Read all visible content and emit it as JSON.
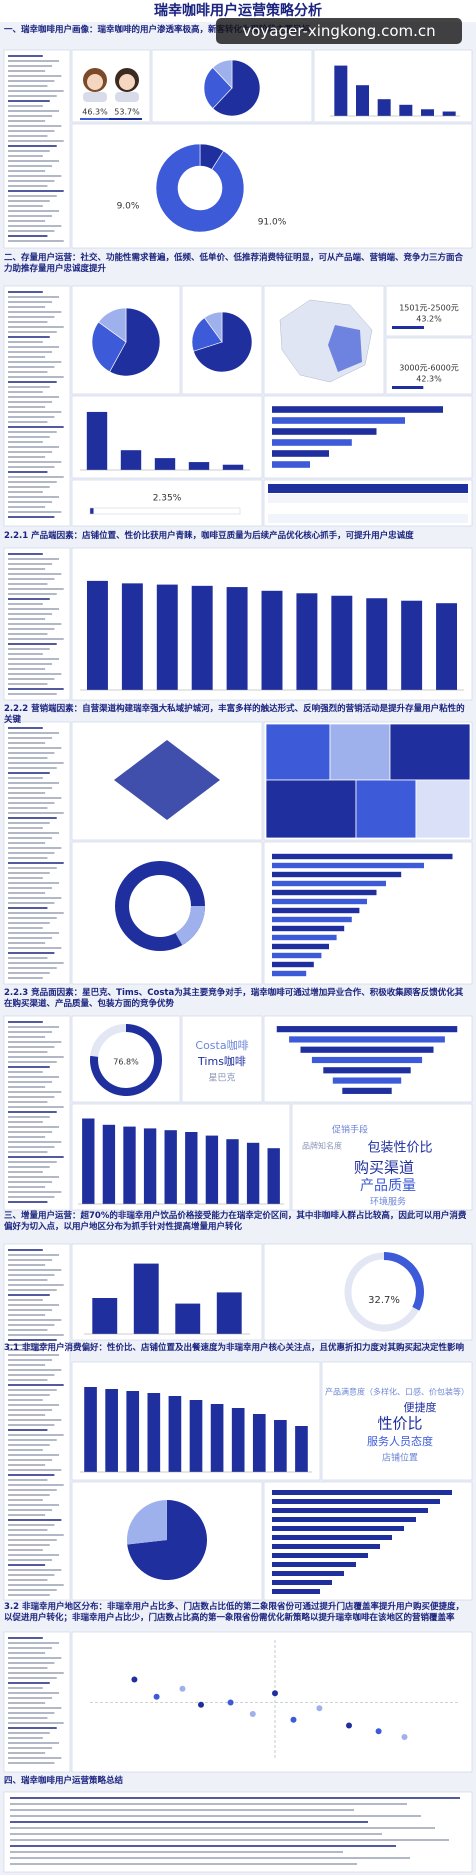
{
  "header": {
    "title": "瑞幸咖啡用户运营策略分析",
    "watermark": "voyager-xingkong.com.cn"
  },
  "sections": {
    "s1": "一、瑞幸咖啡用户画像：瑞幸咖啡的用户渗透率极高，新客转化为现阶段主要目标",
    "s2": "二、存量用户运营：社交、功能性需求普遍，低频、低单价、低推荐消费特征明显，可从产品端、营销端、竞争力三方面合力助推存量用户忠诚度提升",
    "s221": "2.2.1 产品端因素：店铺位置、性价比获用户青睐，咖啡豆质量为后续产品优化核心抓手，可提升用户忠诚度",
    "s222": "2.2.2 营销端因素：自营渠道构建瑞幸强大私域护城河，丰富多样的触达形式、反响强烈的营销活动是提升存量用户粘性的关键",
    "s223": "2.2.3 竞品面因素：星巴克、Tims、Costa为其主要竞争对手，瑞幸咖啡可通过增加异业合作、积极收集顾客反馈优化其在购买渠道、产品质量、包装方面的竞争优势",
    "s3": "三、增量用户运营：超70%的非瑞幸用户饮品价格接受能力在瑞幸定价区间，其中非咖啡人群占比较高，因此可以用户消费偏好为切入点，以用户地区分布为抓手针对性提高增量用户转化",
    "s31": "3.1 非瑞幸用户消费偏好：性价比、店铺位置及出餐速度为非瑞幸用户核心关注点，且优惠折扣力度对其购买起决定性影响",
    "s32": "3.2 非瑞幸用户地区分布：非瑞幸用户占比多、门店数占比低的第二象限省份可通过提升门店覆盖率提升用户购买便捷度，以促进用户转化；非瑞幸用户占比少，门店数占比高的第一象限省份需优化新策略以提升瑞幸咖啡在该地区的营销覆盖率",
    "s4": "四、瑞幸咖啡用户运营策略总结"
  },
  "palette": [
    "#1f2f9e",
    "#3d5ad8",
    "#9fb1ec",
    "#d9e0f7"
  ],
  "gender": {
    "values": [
      46.3,
      53.7
    ],
    "value_labels": [
      "46.3%",
      "53.7%"
    ]
  },
  "user_share_donut": {
    "values": [
      9.0,
      91.0
    ],
    "value_labels": [
      "9.0%",
      "91.0%"
    ]
  },
  "price_range": {
    "categories": [
      "1501元-2500元",
      "3000元-6000元"
    ],
    "values": [
      43.2,
      42.3
    ],
    "value_labels": [
      "43.2%",
      "42.3%"
    ]
  },
  "nps_share": {
    "value": 2.35,
    "value_label": "2.35%"
  },
  "competitor_donut": {
    "value": 76.8,
    "value_label": "76.8%"
  },
  "non_user_gauge": {
    "value": 32.7,
    "value_label": "32.7%"
  },
  "brand_names": [
    "Costa咖啡",
    "Tims咖啡",
    "星巴克"
  ],
  "wordcloud_competition": [
    "促销手段",
    "品牌知名度",
    "包装性价比",
    "购买渠道",
    "产品质量",
    "环境服务"
  ],
  "wordcloud_preference": [
    "产品满意度（多样化、口感、价包装等）",
    "便捷度",
    "性价比",
    "服务人员态度",
    "店铺位置"
  ],
  "pies": {
    "profile": [
      62,
      26,
      12
    ],
    "channel": [
      58,
      27,
      15
    ],
    "scene": [
      70,
      20,
      10
    ]
  },
  "bar_charts": {
    "age": [
      90,
      55,
      30,
      20,
      12,
      8
    ],
    "frequency": [
      88,
      30,
      18,
      12,
      8
    ],
    "product_factors": [
      88,
      86,
      85,
      84,
      83,
      80,
      78,
      76,
      74,
      72,
      70
    ],
    "competitors": [
      95,
      88,
      86,
      84,
      82,
      80,
      76,
      72,
      68,
      62
    ],
    "non_user_price": [
      45,
      88,
      38,
      52
    ],
    "non_user_preference": [
      85,
      83,
      81,
      79,
      76,
      72,
      68,
      64,
      58,
      52,
      46
    ]
  },
  "hbar_charts": {
    "touchpoints": [
      95,
      80,
      68,
      60,
      55,
      50,
      46,
      42,
      38,
      34,
      30,
      26,
      22,
      18
    ],
    "competitor_funnel": [
      95,
      82,
      70,
      58,
      46,
      36,
      26
    ],
    "non_user_channels": [
      90,
      70,
      55,
      42,
      30,
      20
    ]
  },
  "region_scatter": {
    "x": [
      12,
      18,
      25,
      30,
      38,
      44,
      50,
      55,
      62,
      70,
      78,
      85
    ],
    "y": [
      70,
      55,
      62,
      48,
      50,
      40,
      58,
      35,
      45,
      30,
      25,
      20
    ]
  }
}
